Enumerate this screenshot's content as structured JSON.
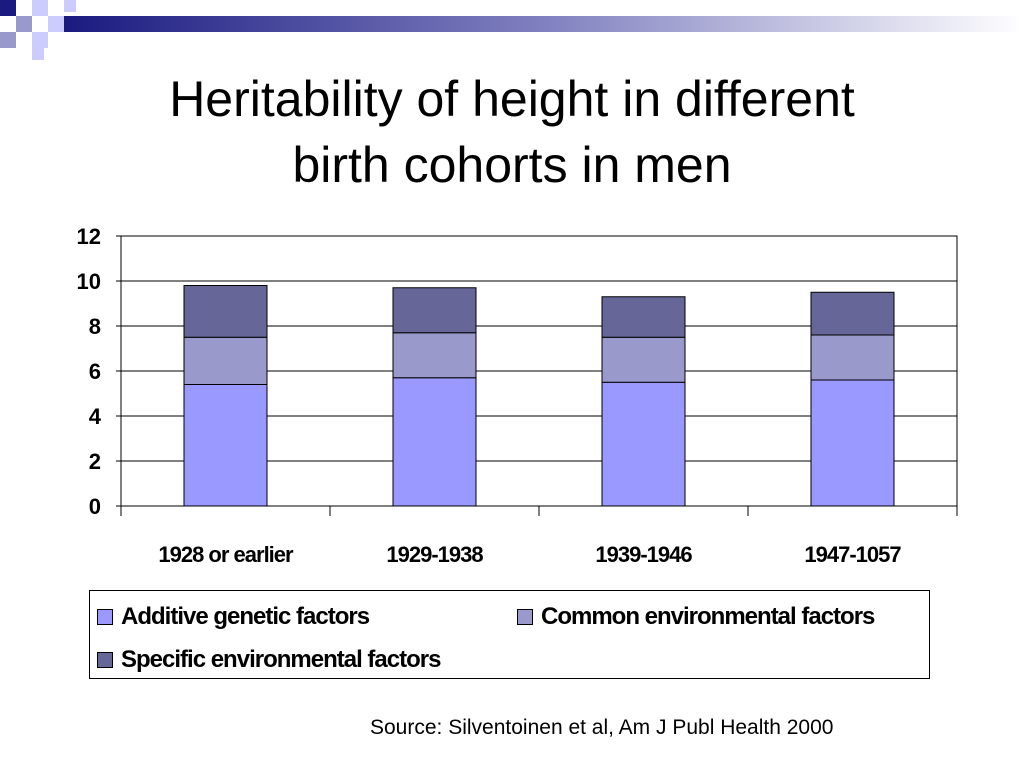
{
  "slide": {
    "title_line1": "Heritability of height in different",
    "title_line2": "birth cohorts in men",
    "source": "Source: Silventoinen et al, Am J Publ Health 2000"
  },
  "chart_data": {
    "type": "bar",
    "stacked": true,
    "categories": [
      "1928 or earlier",
      "1929-1938",
      "1939-1946",
      "1947-1057"
    ],
    "series": [
      {
        "name": "Additive genetic factors",
        "color": "#9999ff",
        "values": [
          5.4,
          5.7,
          5.5,
          5.6
        ]
      },
      {
        "name": "Common environmental factors",
        "color": "#9999cc",
        "values": [
          2.1,
          2.0,
          2.0,
          2.0
        ]
      },
      {
        "name": "Specific environmental factors",
        "color": "#666699",
        "values": [
          2.3,
          2.0,
          1.8,
          1.9
        ]
      }
    ],
    "ylim": [
      0,
      12
    ],
    "yticks": [
      0,
      2,
      4,
      6,
      8,
      10,
      12
    ],
    "grid": true,
    "legend_position": "bottom"
  }
}
